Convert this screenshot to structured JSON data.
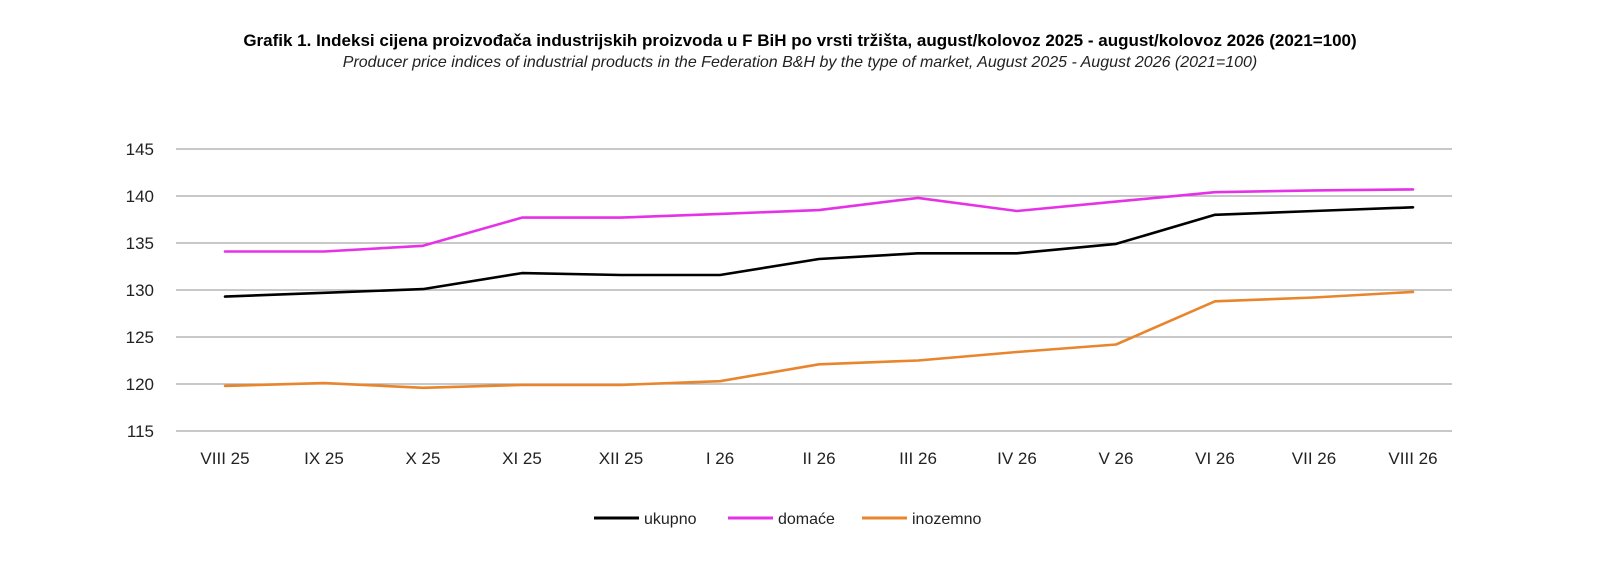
{
  "chart_data": {
    "type": "line",
    "title": "Grafik 1.  Indeksi cijena proizvođača industrijskih proizvoda u F BiH po vrsti tržišta, august/kolovoz 2025 - august/kolovoz 2026 (2021=100)",
    "subtitle": "Producer price indices of industrial products in the Federation B&H by the type of market, August 2025 - August 2026 (2021=100)",
    "categories": [
      "VIII 25",
      "IX 25",
      "X 25",
      "XI 25",
      "XII 25",
      "I 26",
      "II 26",
      "III 26",
      "IV 26",
      "V 26",
      "VI 26",
      "VII 26",
      "VIII 26"
    ],
    "ylim": [
      115,
      145
    ],
    "yticks": [
      145,
      140,
      135,
      130,
      125,
      120,
      115
    ],
    "grid": true,
    "legend_position": "bottom",
    "series": [
      {
        "name": "ukupno",
        "color": "#000000",
        "values": [
          129.3,
          129.7,
          130.1,
          131.8,
          131.6,
          131.6,
          133.3,
          133.9,
          133.9,
          134.9,
          138.0,
          138.4,
          138.8
        ]
      },
      {
        "name": "domaće",
        "color": "#e632e6",
        "values": [
          134.1,
          134.1,
          134.7,
          137.7,
          137.7,
          138.1,
          138.5,
          139.8,
          138.4,
          139.4,
          140.4,
          140.6,
          140.7
        ]
      },
      {
        "name": "inozemno",
        "color": "#e8852d",
        "values": [
          119.8,
          120.1,
          119.6,
          119.9,
          119.9,
          120.3,
          122.1,
          122.5,
          123.4,
          124.2,
          128.8,
          129.2,
          129.8
        ]
      }
    ]
  }
}
